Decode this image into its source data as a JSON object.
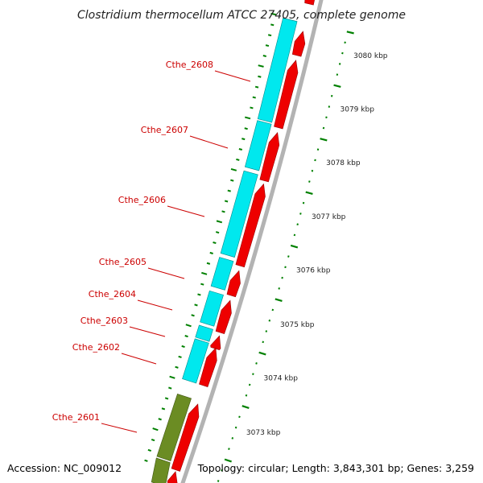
{
  "title": "Clostridium thermocellum ATCC 27405, complete genome",
  "accession": "Accession: NC_009012",
  "topology": "Topology: circular; Length: 3,843,301 bp; Genes: 3,259",
  "colors": {
    "forward_cds": "#00e8ee",
    "reverse_cds": "#ee0000",
    "rna_feature": "#6b8c23",
    "backbone": "#b3b3b3",
    "gene_label": "#cc0000",
    "ticks": "#008000"
  },
  "gene_labels": [
    {
      "name": "Cthe_2608"
    },
    {
      "name": "Cthe_2607"
    },
    {
      "name": "Cthe_2606"
    },
    {
      "name": "Cthe_2605"
    },
    {
      "name": "Cthe_2604"
    },
    {
      "name": "Cthe_2603"
    },
    {
      "name": "Cthe_2602"
    },
    {
      "name": "Cthe_2601"
    }
  ],
  "scale_labels": [
    {
      "text": "3080 kbp"
    },
    {
      "text": "3079 kbp"
    },
    {
      "text": "3078 kbp"
    },
    {
      "text": "3077 kbp"
    },
    {
      "text": "3076 kbp"
    },
    {
      "text": "3075 kbp"
    },
    {
      "text": "3074 kbp"
    },
    {
      "text": "3073 kbp"
    }
  ]
}
